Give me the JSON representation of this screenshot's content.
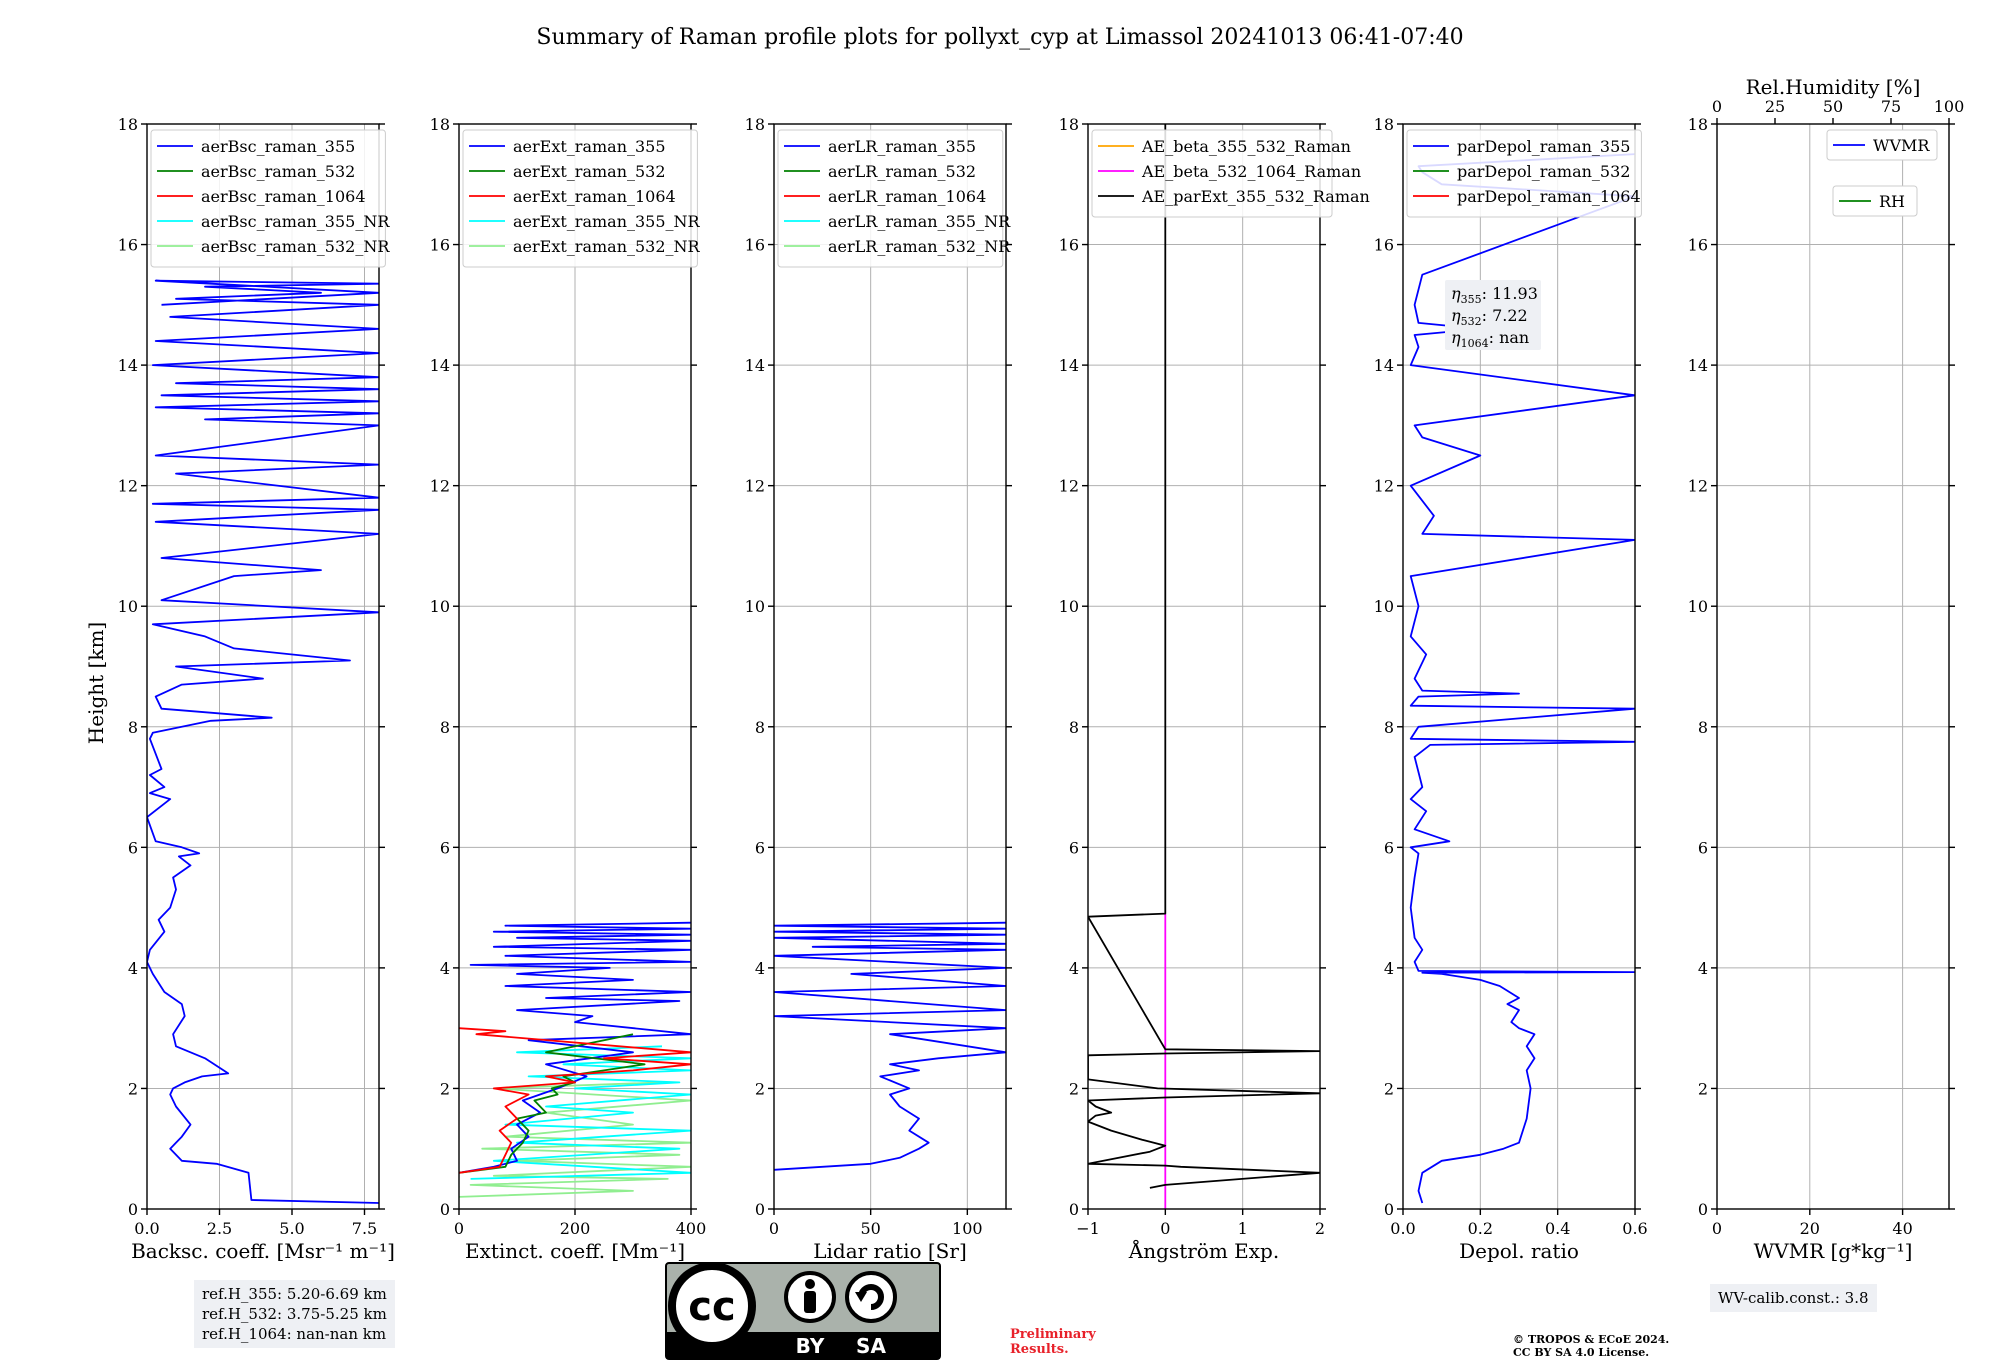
{
  "title": "Summary of Raman profile plots for pollyxt_cyp at Limassol 20241013 06:41-07:40",
  "ylabel": "Height [km]",
  "annotations": {
    "ref_lines": [
      "ref.H_355: 5.20-6.69 km",
      "ref.H_532: 3.75-5.25 km",
      "ref.H_1064: nan-nan km"
    ],
    "preliminary": [
      "Preliminary",
      "Results."
    ],
    "copyright": [
      "© TROPOS & ECoE 2024.",
      "CC BY SA 4.0 License."
    ],
    "wv_calib": "WV-calib.const.: 3.8",
    "license_badge": {
      "text_by": "BY",
      "text_sa": "SA",
      "text_cc": "cc"
    }
  },
  "colors": {
    "c355": "#0000ff",
    "c532": "#008000",
    "c1064": "#ff0000",
    "c355nr": "#00ffff",
    "c532nr": "#90ee90",
    "orange": "#ffa500",
    "magenta": "#ff00ff",
    "black": "#000000",
    "grid": "#b0b0b0"
  },
  "chart_data": [
    {
      "type": "line",
      "id": "bsc",
      "xlabel": "Backsc. coeff. [Msr⁻¹ m⁻¹]",
      "xlim": [
        0,
        8
      ],
      "ylim": [
        0,
        18
      ],
      "xticks": [
        0,
        2.5,
        5,
        7.5
      ],
      "xticklabels": [
        "0.0",
        "2.5",
        "5.0",
        "7.5"
      ],
      "yticks": [
        0,
        2,
        4,
        6,
        8,
        10,
        12,
        14,
        16,
        18
      ],
      "legend": {
        "loc": "upper-left",
        "entries": [
          {
            "name": "aerBsc_raman_355",
            "color": "#0000ff"
          },
          {
            "name": "aerBsc_raman_532",
            "color": "#008000"
          },
          {
            "name": "aerBsc_raman_1064",
            "color": "#ff0000"
          },
          {
            "name": "aerBsc_raman_355_NR",
            "color": "#00ffff"
          },
          {
            "name": "aerBsc_raman_532_NR",
            "color": "#90ee90"
          }
        ]
      },
      "series": [
        {
          "name": "aerBsc_raman_355",
          "color": "#0000ff",
          "x": [
            8.0,
            3.6,
            3.5,
            2.4,
            1.2,
            0.8,
            1.2,
            1.5,
            1.0,
            0.8,
            0.9,
            1.3,
            1.9,
            2.8,
            2.0,
            1.0,
            0.9,
            1.3,
            1.2,
            0.6,
            0.2,
            0.0,
            0.1,
            0.6,
            0.4,
            0.8,
            1.0,
            0.9,
            1.5,
            1.1,
            1.8,
            1.2,
            0.3,
            0.0,
            0.8,
            0.1,
            0.6,
            0.1,
            0.5,
            0.1,
            0.2,
            1.2,
            2.2,
            4.3,
            0.5,
            0.3,
            1.2,
            4.0,
            1.0,
            7.0,
            3.0,
            2.0,
            0.2,
            8.0,
            0.5,
            3.0,
            6.0,
            0.5,
            8.0,
            0.3,
            8.0,
            0.2,
            8.0,
            1.0,
            8.0,
            0.3,
            8.0,
            2.0,
            8.0,
            0.3,
            8.0,
            0.5,
            8.0,
            1.0,
            8.0,
            0.2,
            8.0,
            0.3,
            8.0,
            0.8,
            8.0,
            1.0,
            6.0,
            2.0,
            8.0,
            0.3,
            8.0,
            0.5
          ],
          "y": [
            0.1,
            0.15,
            0.6,
            0.75,
            0.8,
            1.0,
            1.2,
            1.4,
            1.7,
            1.9,
            2.0,
            2.1,
            2.2,
            2.25,
            2.5,
            2.7,
            2.9,
            3.2,
            3.4,
            3.6,
            3.9,
            4.1,
            4.3,
            4.6,
            4.8,
            5.0,
            5.3,
            5.5,
            5.7,
            5.85,
            5.9,
            6.0,
            6.1,
            6.5,
            6.8,
            6.9,
            7.0,
            7.2,
            7.3,
            7.8,
            7.9,
            8.0,
            8.1,
            8.15,
            8.3,
            8.5,
            8.7,
            8.8,
            9.0,
            9.1,
            9.3,
            9.5,
            9.7,
            9.9,
            10.1,
            10.5,
            10.6,
            10.8,
            11.2,
            11.4,
            11.6,
            11.7,
            11.8,
            12.2,
            12.35,
            12.5,
            13.0,
            13.1,
            13.2,
            13.3,
            13.4,
            13.5,
            13.6,
            13.7,
            13.8,
            14.0,
            14.2,
            14.4,
            14.6,
            14.8,
            15.0,
            15.1,
            15.2,
            15.3,
            15.35,
            15.4,
            15.2,
            15.0
          ]
        }
      ]
    },
    {
      "type": "line",
      "id": "ext",
      "xlabel": "Extinct. coeff. [Mm⁻¹]",
      "xlim": [
        0,
        400
      ],
      "ylim": [
        0,
        18
      ],
      "xticks": [
        0,
        200,
        400
      ],
      "xticklabels": [
        "0",
        "200",
        "400"
      ],
      "yticks": [
        0,
        2,
        4,
        6,
        8,
        10,
        12,
        14,
        16,
        18
      ],
      "legend": {
        "loc": "upper-left",
        "entries": [
          {
            "name": "aerExt_raman_355",
            "color": "#0000ff"
          },
          {
            "name": "aerExt_raman_532",
            "color": "#008000"
          },
          {
            "name": "aerExt_raman_1064",
            "color": "#ff0000"
          },
          {
            "name": "aerExt_raman_355_NR",
            "color": "#00ffff"
          },
          {
            "name": "aerExt_raman_532_NR",
            "color": "#90ee90"
          }
        ]
      },
      "series": [
        {
          "name": "aerExt_raman_532_NR",
          "color": "#90ee90",
          "x": [
            0,
            300,
            20,
            360,
            60,
            400,
            100,
            380,
            40,
            400,
            80,
            300,
            150,
            400,
            60,
            350
          ],
          "y": [
            0.2,
            0.3,
            0.4,
            0.5,
            0.55,
            0.7,
            0.8,
            0.9,
            1.0,
            1.1,
            1.2,
            1.4,
            1.6,
            1.8,
            2.0,
            2.1
          ]
        },
        {
          "name": "aerExt_raman_355_NR",
          "color": "#00ffff",
          "x": [
            20,
            400,
            60,
            380,
            100,
            400,
            80,
            300,
            150,
            400,
            200,
            380,
            120,
            400,
            180,
            400,
            100,
            350
          ],
          "y": [
            0.5,
            0.6,
            0.8,
            1.0,
            1.1,
            1.3,
            1.4,
            1.6,
            1.7,
            1.9,
            2.0,
            2.1,
            2.2,
            2.3,
            2.4,
            2.5,
            2.6,
            2.7
          ]
        },
        {
          "name": "aerExt_raman_355",
          "color": "#0000ff",
          "x": [
            0,
            60,
            100,
            90,
            120,
            100,
            140,
            110,
            170,
            220,
            150,
            300,
            120,
            400,
            200,
            230,
            100,
            380,
            150,
            400,
            80,
            300,
            100,
            260,
            20,
            400,
            80,
            400,
            60,
            400,
            100,
            400,
            60,
            400,
            80,
            400
          ],
          "y": [
            0.6,
            0.7,
            0.8,
            1.0,
            1.2,
            1.4,
            1.6,
            1.8,
            2.0,
            2.2,
            2.4,
            2.6,
            2.8,
            2.9,
            3.1,
            3.2,
            3.3,
            3.45,
            3.5,
            3.6,
            3.7,
            3.8,
            3.9,
            4.0,
            4.05,
            4.1,
            4.2,
            4.3,
            4.35,
            4.45,
            4.5,
            4.55,
            4.6,
            4.65,
            4.7,
            4.75
          ]
        },
        {
          "name": "aerExt_raman_532",
          "color": "#008000",
          "x": [
            0,
            80,
            90,
            110,
            120,
            100,
            150,
            130,
            170,
            160,
            200,
            180,
            250,
            320,
            150,
            300
          ],
          "y": [
            0.6,
            0.7,
            0.9,
            1.1,
            1.3,
            1.5,
            1.6,
            1.8,
            1.9,
            2.0,
            2.1,
            2.2,
            2.3,
            2.4,
            2.6,
            2.9
          ]
        },
        {
          "name": "aerExt_raman_1064",
          "color": "#ff0000",
          "x": [
            0,
            70,
            80,
            90,
            70,
            100,
            80,
            120,
            60,
            200,
            150,
            300,
            400,
            250,
            400,
            30,
            80,
            0
          ],
          "y": [
            0.6,
            0.7,
            0.9,
            1.1,
            1.3,
            1.5,
            1.7,
            1.9,
            2.0,
            2.1,
            2.2,
            2.3,
            2.4,
            2.5,
            2.6,
            2.9,
            2.95,
            3.0
          ]
        }
      ]
    },
    {
      "type": "line",
      "id": "lr",
      "xlabel": "Lidar ratio [Sr]",
      "xlim": [
        0,
        120
      ],
      "ylim": [
        0,
        18
      ],
      "xticks": [
        0,
        50,
        100
      ],
      "xticklabels": [
        "0",
        "50",
        "100"
      ],
      "yticks": [
        0,
        2,
        4,
        6,
        8,
        10,
        12,
        14,
        16,
        18
      ],
      "legend": {
        "loc": "upper-left",
        "entries": [
          {
            "name": "aerLR_raman_355",
            "color": "#0000ff"
          },
          {
            "name": "aerLR_raman_532",
            "color": "#008000"
          },
          {
            "name": "aerLR_raman_1064",
            "color": "#ff0000"
          },
          {
            "name": "aerLR_raman_355_NR",
            "color": "#00ffff"
          },
          {
            "name": "aerLR_raman_532_NR",
            "color": "#90ee90"
          }
        ]
      },
      "series": [
        {
          "name": "aerLR_raman_355",
          "color": "#0000ff",
          "x": [
            0,
            50,
            65,
            75,
            80,
            70,
            75,
            65,
            60,
            70,
            55,
            75,
            60,
            85,
            120,
            80,
            60,
            120,
            0,
            120,
            0,
            120,
            40,
            120,
            0,
            120,
            20,
            120,
            0,
            120,
            0,
            120,
            0,
            120
          ],
          "y": [
            0.65,
            0.75,
            0.85,
            1.0,
            1.1,
            1.3,
            1.5,
            1.7,
            1.9,
            2.0,
            2.2,
            2.3,
            2.4,
            2.5,
            2.6,
            2.8,
            2.9,
            3.0,
            3.2,
            3.3,
            3.6,
            3.7,
            3.9,
            4.0,
            4.2,
            4.3,
            4.35,
            4.4,
            4.5,
            4.55,
            4.6,
            4.65,
            4.7,
            4.75
          ]
        }
      ]
    },
    {
      "type": "line",
      "id": "ae",
      "xlabel": "Ångström Exp.",
      "xlim": [
        -1,
        2
      ],
      "ylim": [
        0,
        18
      ],
      "xticks": [
        -1,
        0,
        1,
        2
      ],
      "xticklabels": [
        "−1",
        "0",
        "1",
        "2"
      ],
      "yticks": [
        0,
        2,
        4,
        6,
        8,
        10,
        12,
        14,
        16,
        18
      ],
      "legend": {
        "loc": "upper-left",
        "entries": [
          {
            "name": "AE_beta_355_532_Raman",
            "color": "#ffa500"
          },
          {
            "name": "AE_beta_532_1064_Raman",
            "color": "#ff00ff"
          },
          {
            "name": "AE_parExt_355_532_Raman",
            "color": "#000000"
          }
        ]
      },
      "series": [
        {
          "name": "AE_beta_532_1064_Raman",
          "color": "#ff00ff",
          "x": [
            0,
            0
          ],
          "y": [
            0.0,
            4.9
          ]
        },
        {
          "name": "AE_parExt_355_532_Raman",
          "color": "#000000",
          "x": [
            -0.2,
            0.0,
            2.0,
            0.2,
            0.0,
            -1.0,
            -0.2,
            0.0,
            -0.3,
            -0.7,
            -1.0,
            -0.9,
            -0.7,
            -0.9,
            -1.0,
            0.0,
            2.0,
            -0.1,
            -1.0,
            -1.0,
            0.0,
            2.0,
            0.0,
            -1.0,
            0.0,
            0.0
          ],
          "y": [
            0.35,
            0.4,
            0.6,
            0.7,
            0.72,
            0.75,
            0.95,
            1.05,
            1.15,
            1.3,
            1.45,
            1.55,
            1.6,
            1.7,
            1.8,
            1.85,
            1.92,
            2.0,
            2.15,
            2.55,
            2.58,
            2.62,
            2.65,
            4.85,
            4.9,
            18.0
          ]
        }
      ]
    },
    {
      "type": "line",
      "id": "depol",
      "xlabel": "Depol. ratio",
      "xlim": [
        0,
        0.6
      ],
      "ylim": [
        0,
        18
      ],
      "xticks": [
        0,
        0.2,
        0.4,
        0.6
      ],
      "xticklabels": [
        "0.0",
        "0.2",
        "0.4",
        "0.6"
      ],
      "yticks": [
        0,
        2,
        4,
        6,
        8,
        10,
        12,
        14,
        16,
        18
      ],
      "legend": {
        "loc": "upper-left",
        "entries": [
          {
            "name": "parDepol_raman_355",
            "color": "#0000ff"
          },
          {
            "name": "parDepol_raman_532",
            "color": "#008000"
          },
          {
            "name": "parDepol_raman_1064",
            "color": "#ff0000"
          }
        ]
      },
      "eta_labels": {
        "eta355": "11.93",
        "eta532": "7.22",
        "eta1064": "nan"
      },
      "series": [
        {
          "name": "parDepol_raman_355",
          "color": "#0000ff",
          "x": [
            0.05,
            0.04,
            0.05,
            0.1,
            0.2,
            0.26,
            0.3,
            0.32,
            0.33,
            0.32,
            0.34,
            0.32,
            0.34,
            0.3,
            0.28,
            0.3,
            0.27,
            0.3,
            0.25,
            0.2,
            0.15,
            0.1,
            0.05,
            0.6,
            0.04,
            0.03,
            0.05,
            0.03,
            0.02,
            0.03,
            0.04,
            0.02,
            0.12,
            0.03,
            0.06,
            0.02,
            0.05,
            0.03,
            0.07,
            0.6,
            0.02,
            0.04,
            0.6,
            0.02,
            0.04,
            0.3,
            0.05,
            0.03,
            0.06,
            0.02,
            0.04,
            0.02,
            0.6,
            0.05,
            0.08,
            0.02,
            0.2,
            0.05,
            0.03,
            0.6,
            0.02,
            0.04,
            0.03,
            0.2,
            0.04,
            0.03,
            0.05,
            0.6,
            0.1,
            0.05,
            0.04,
            0.6
          ],
          "y": [
            0.1,
            0.3,
            0.6,
            0.8,
            0.9,
            1.0,
            1.1,
            1.5,
            2.0,
            2.3,
            2.5,
            2.7,
            2.9,
            3.0,
            3.1,
            3.3,
            3.4,
            3.5,
            3.7,
            3.8,
            3.85,
            3.9,
            3.92,
            3.93,
            3.95,
            4.1,
            4.3,
            4.5,
            5.0,
            5.5,
            5.9,
            6.0,
            6.1,
            6.3,
            6.6,
            6.8,
            7.0,
            7.5,
            7.7,
            7.75,
            7.8,
            8.0,
            8.3,
            8.35,
            8.5,
            8.55,
            8.6,
            8.8,
            9.2,
            9.5,
            10.0,
            10.5,
            11.1,
            11.2,
            11.5,
            12.0,
            12.5,
            12.8,
            13.0,
            13.5,
            14.0,
            14.3,
            14.5,
            14.6,
            14.7,
            15.0,
            15.5,
            16.8,
            17.0,
            17.2,
            17.3,
            17.5
          ]
        }
      ]
    },
    {
      "type": "line",
      "id": "wv",
      "xlabel": "WVMR [g*kg⁻¹]",
      "top_xlabel": "Rel.Humidity [%]",
      "xlim": [
        0,
        50
      ],
      "ylim": [
        0,
        18
      ],
      "xticks": [
        0,
        20,
        40
      ],
      "xticklabels": [
        "0",
        "20",
        "40"
      ],
      "top_xlim": [
        0,
        100
      ],
      "top_xticks": [
        0,
        25,
        50,
        75,
        100
      ],
      "top_xticklabels": [
        "0",
        "25",
        "50",
        "75",
        "100"
      ],
      "yticks": [
        0,
        2,
        4,
        6,
        8,
        10,
        12,
        14,
        16,
        18
      ],
      "legend": {
        "loc": "upper-right",
        "entries": [
          {
            "name": "WVMR",
            "color": "#0000ff"
          },
          {
            "name": "RH",
            "color": "#008000"
          }
        ]
      },
      "series": []
    }
  ]
}
